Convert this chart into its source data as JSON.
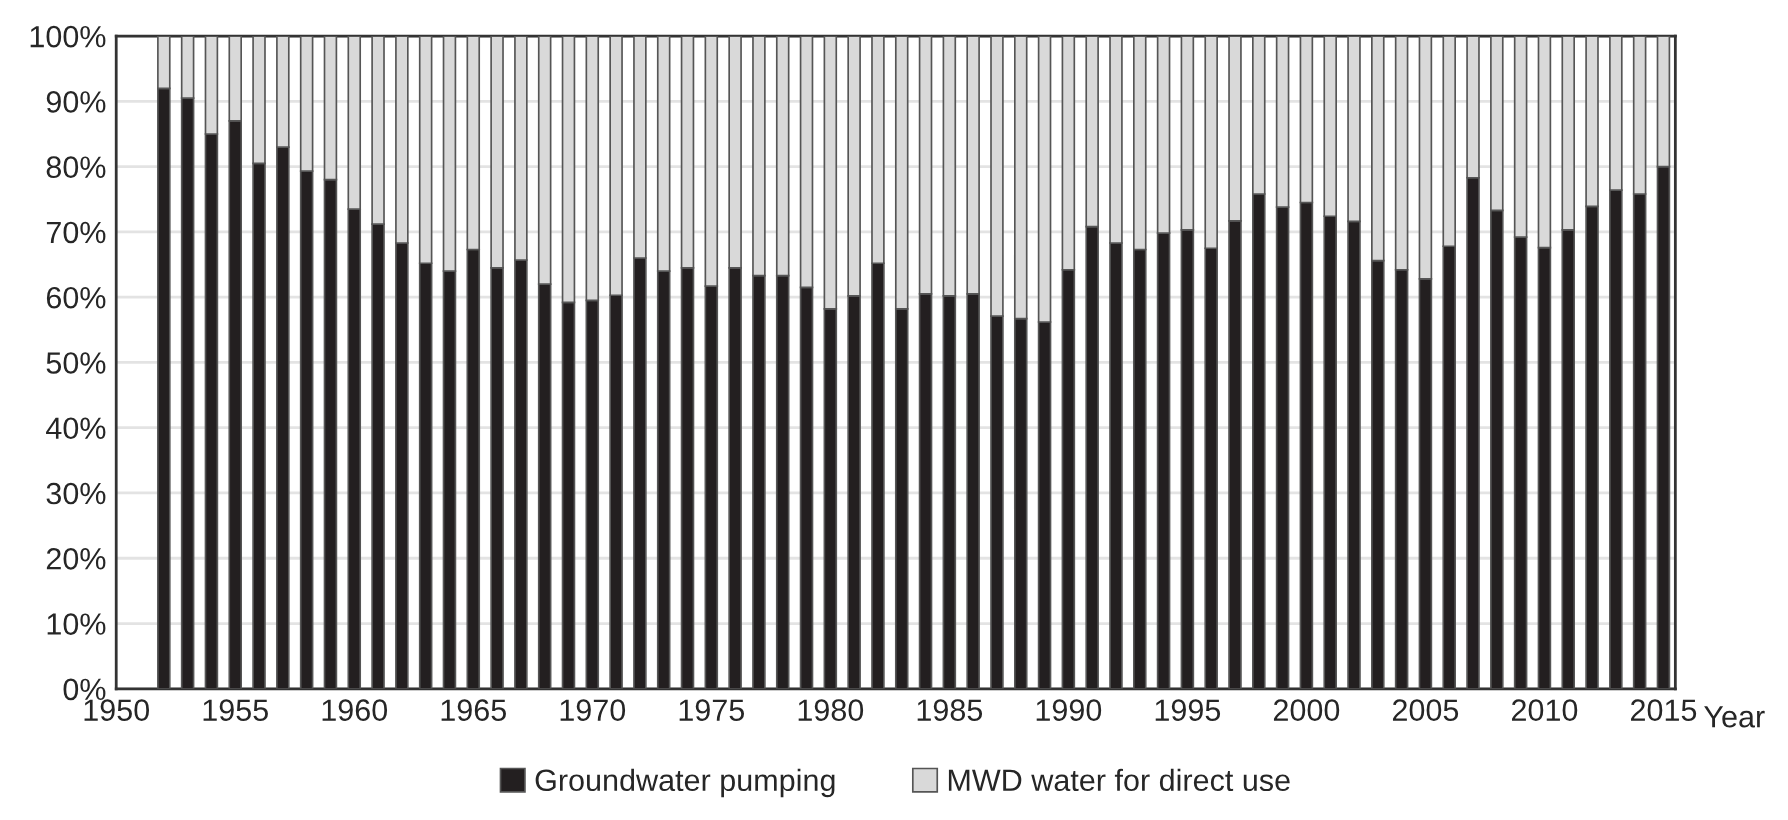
{
  "chart_data": {
    "type": "bar",
    "stacked": true,
    "xlabel": "Year",
    "x": [
      1952,
      1953,
      1954,
      1955,
      1956,
      1957,
      1958,
      1959,
      1960,
      1961,
      1962,
      1963,
      1964,
      1965,
      1966,
      1967,
      1968,
      1969,
      1970,
      1971,
      1972,
      1973,
      1974,
      1975,
      1976,
      1977,
      1978,
      1979,
      1980,
      1981,
      1982,
      1983,
      1984,
      1985,
      1986,
      1987,
      1988,
      1989,
      1990,
      1991,
      1992,
      1993,
      1994,
      1995,
      1996,
      1997,
      1998,
      1999,
      2000,
      2001,
      2002,
      2003,
      2004,
      2005,
      2006,
      2007,
      2008,
      2009,
      2010,
      2011,
      2012,
      2013,
      2014,
      2015
    ],
    "series": [
      {
        "name": "Groundwater pumping",
        "color": "#231f20",
        "values": [
          92,
          90.5,
          85,
          87,
          80.5,
          83,
          79.3,
          78,
          73.5,
          71.2,
          68.3,
          65.2,
          64,
          67.3,
          64.5,
          65.7,
          62,
          59.2,
          59.5,
          60.3,
          66,
          64,
          64.5,
          61.7,
          64.5,
          63.3,
          63.3,
          61.5,
          58.2,
          60.2,
          65.2,
          58.2,
          60.5,
          60.2,
          60.5,
          57.1,
          56.7,
          56.2,
          64.2,
          70.8,
          68.3,
          67.3,
          69.8,
          70.3,
          67.5,
          71.7,
          75.8,
          73.8,
          74.5,
          72.4,
          71.6,
          65.6,
          64.2,
          62.8,
          67.8,
          78.3,
          73.3,
          69.2,
          67.6,
          70.3,
          73.9,
          76.4,
          75.8,
          80
        ]
      },
      {
        "name": "MWD water for direct use",
        "color": "#d9d9d9",
        "values": [
          8,
          9.5,
          15,
          13,
          19.5,
          17,
          20.7,
          22,
          26.5,
          28.8,
          31.7,
          34.8,
          36,
          32.7,
          35.5,
          34.3,
          38,
          40.8,
          40.5,
          39.7,
          34,
          36,
          35.5,
          38.3,
          35.5,
          36.7,
          36.7,
          38.5,
          41.8,
          39.8,
          34.8,
          41.8,
          39.5,
          39.8,
          39.5,
          42.9,
          43.3,
          43.8,
          35.8,
          29.2,
          31.7,
          32.7,
          30.2,
          29.7,
          32.5,
          28.3,
          24.2,
          26.2,
          25.5,
          27.6,
          28.4,
          34.4,
          35.8,
          37.2,
          32.2,
          21.7,
          26.7,
          30.8,
          32.4,
          29.7,
          26.1,
          23.6,
          24.2,
          20
        ]
      }
    ],
    "xlim": [
      1950,
      2015.5
    ],
    "xticks": [
      1950,
      1955,
      1960,
      1965,
      1970,
      1975,
      1980,
      1985,
      1990,
      1995,
      2000,
      2005,
      2010,
      2015
    ],
    "ylim": [
      0,
      100
    ],
    "yticks": [
      {
        "value": 0,
        "label": "0%"
      },
      {
        "value": 10,
        "label": "10%"
      },
      {
        "value": 20,
        "label": "20%"
      },
      {
        "value": 30,
        "label": "30%"
      },
      {
        "value": 40,
        "label": "40%"
      },
      {
        "value": 50,
        "label": "50%"
      },
      {
        "value": 60,
        "label": "60%"
      },
      {
        "value": 70,
        "label": "70%"
      },
      {
        "value": 80,
        "label": "80%"
      },
      {
        "value": 90,
        "label": "90%"
      },
      {
        "value": 100,
        "label": "100%"
      }
    ],
    "grid": "y",
    "legend": "bottom"
  }
}
